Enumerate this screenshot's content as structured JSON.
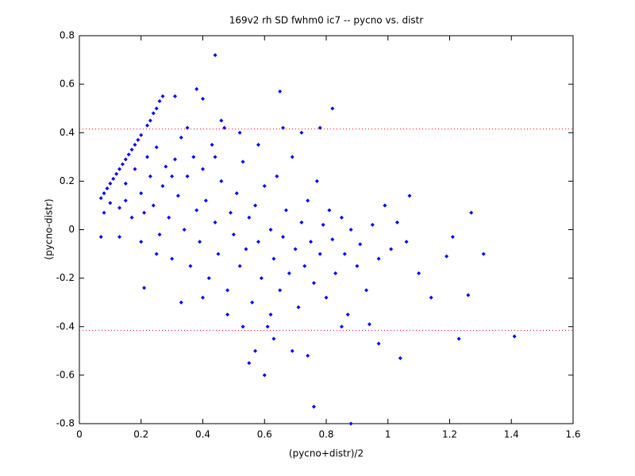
{
  "chart_data": {
    "type": "scatter",
    "title": "169v2 rh SD fwhm0 ic7 -- pycno vs. distr",
    "x_label": "(pycno+distr)/2",
    "y_label": "(pycno-distr)",
    "color": "#0000ff",
    "x": [
      0.07,
      0.08,
      0.09,
      0.1,
      0.11,
      0.12,
      0.13,
      0.14,
      0.15,
      0.16,
      0.17,
      0.18,
      0.19,
      0.2,
      0.22,
      0.23,
      0.24,
      0.25,
      0.26,
      0.27,
      0.1,
      0.13,
      0.15,
      0.15,
      0.17,
      0.18,
      0.2,
      0.21,
      0.22,
      0.23,
      0.24,
      0.25,
      0.26,
      0.27,
      0.28,
      0.29,
      0.3,
      0.31,
      0.32,
      0.33,
      0.34,
      0.35,
      0.36,
      0.37,
      0.38,
      0.39,
      0.4,
      0.41,
      0.42,
      0.43,
      0.44,
      0.45,
      0.46,
      0.47,
      0.48,
      0.49,
      0.5,
      0.51,
      0.52,
      0.53,
      0.54,
      0.55,
      0.56,
      0.57,
      0.58,
      0.59,
      0.6,
      0.61,
      0.62,
      0.63,
      0.64,
      0.65,
      0.66,
      0.67,
      0.68,
      0.69,
      0.7,
      0.71,
      0.72,
      0.73,
      0.74,
      0.75,
      0.76,
      0.77,
      0.78,
      0.79,
      0.8,
      0.81,
      0.82,
      0.83,
      0.85,
      0.86,
      0.87,
      0.88,
      0.9,
      0.91,
      0.93,
      0.95,
      0.97,
      0.99,
      1.01,
      1.03,
      1.06,
      0.57,
      0.6,
      0.55,
      0.63,
      0.69,
      0.74,
      0.52,
      0.46,
      0.33,
      0.25,
      0.4,
      0.48,
      0.66,
      0.72,
      0.58,
      0.35,
      0.3,
      0.2,
      0.44,
      0.53,
      0.62,
      0.85,
      0.78,
      0.44,
      0.88,
      0.76,
      1.41,
      1.23,
      1.31,
      1.27,
      1.21,
      1.19,
      1.14,
      1.26,
      1.1,
      1.07,
      1.04,
      0.97,
      0.94,
      0.82,
      0.65,
      0.4,
      0.38,
      0.31,
      0.07,
      0.21,
      0.13,
      0.08
    ],
    "values": [
      0.13,
      0.15,
      0.17,
      0.19,
      0.21,
      0.23,
      0.25,
      0.27,
      0.29,
      0.31,
      0.33,
      0.35,
      0.37,
      0.39,
      0.43,
      0.45,
      0.48,
      0.5,
      0.53,
      0.55,
      0.11,
      0.09,
      0.19,
      0.12,
      0.05,
      0.25,
      0.15,
      0.07,
      0.3,
      0.22,
      0.1,
      0.34,
      -0.02,
      0.18,
      0.26,
      0.05,
      -0.12,
      0.29,
      0.14,
      0.38,
      0.0,
      0.22,
      -0.15,
      0.3,
      0.08,
      -0.05,
      0.25,
      0.12,
      -0.2,
      0.35,
      0.03,
      -0.1,
      0.2,
      0.42,
      -0.25,
      0.07,
      -0.02,
      0.15,
      -0.15,
      0.28,
      -0.08,
      0.05,
      -0.3,
      0.1,
      -0.05,
      -0.2,
      0.18,
      -0.4,
      0.0,
      -0.12,
      0.22,
      -0.25,
      -0.03,
      0.08,
      -0.18,
      0.3,
      -0.08,
      -0.32,
      0.03,
      -0.15,
      0.12,
      -0.05,
      -0.22,
      0.2,
      -0.1,
      0.02,
      -0.28,
      0.08,
      -0.04,
      -0.18,
      0.05,
      -0.1,
      -0.35,
      0.0,
      -0.15,
      -0.06,
      -0.25,
      0.02,
      -0.12,
      0.1,
      -0.08,
      0.03,
      -0.05,
      -0.5,
      -0.6,
      -0.55,
      -0.45,
      -0.5,
      -0.52,
      0.4,
      0.45,
      -0.3,
      -0.1,
      -0.28,
      -0.35,
      0.42,
      0.4,
      0.35,
      0.42,
      0.22,
      -0.05,
      0.3,
      -0.4,
      -0.35,
      -0.4,
      0.42,
      0.72,
      -0.8,
      -0.73,
      -0.44,
      -0.45,
      -0.1,
      0.07,
      -0.03,
      -0.11,
      -0.28,
      -0.27,
      -0.18,
      0.14,
      -0.53,
      -0.47,
      -0.39,
      0.5,
      0.57,
      0.54,
      0.58,
      0.55,
      -0.03,
      -0.24,
      -0.03,
      0.07
    ],
    "reference_lines": {
      "values": [
        0.415,
        -0.415
      ],
      "color": "#ff0000"
    },
    "xlim": [
      0,
      1.6
    ],
    "xticks": [
      0,
      0.2,
      0.4,
      0.6,
      0.8,
      1,
      1.2,
      1.4,
      1.6
    ],
    "ylim": [
      -0.8,
      0.8
    ],
    "yticks": [
      -0.8,
      -0.6,
      -0.4,
      -0.2,
      0,
      0.2,
      0.4,
      0.6,
      0.8
    ]
  }
}
